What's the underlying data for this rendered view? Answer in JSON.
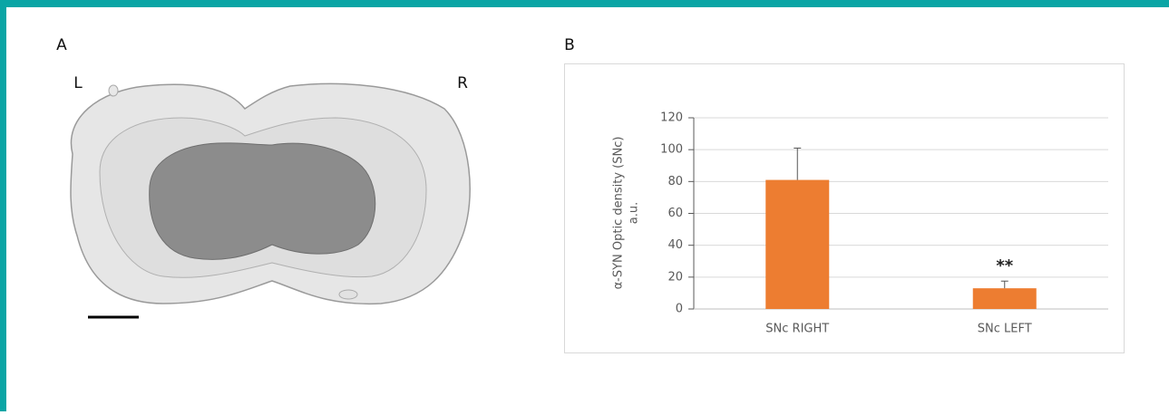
{
  "panels": {
    "a": {
      "label": "A",
      "left": "L",
      "right": "R"
    },
    "b": {
      "label": "B"
    }
  },
  "chart_data": {
    "type": "bar",
    "y_label": [
      "α-SYN Optic density (SNc)",
      "a.u."
    ],
    "categories": [
      "SNc RIGHT",
      "SNc LEFT"
    ],
    "values": [
      81,
      13
    ],
    "errors": [
      20,
      4.5
    ],
    "color": "#ed7d31",
    "annotation": "**",
    "ylim": [
      0,
      120
    ],
    "yticks": [
      0,
      20,
      40,
      60,
      80,
      100,
      120
    ],
    "grid": true
  }
}
